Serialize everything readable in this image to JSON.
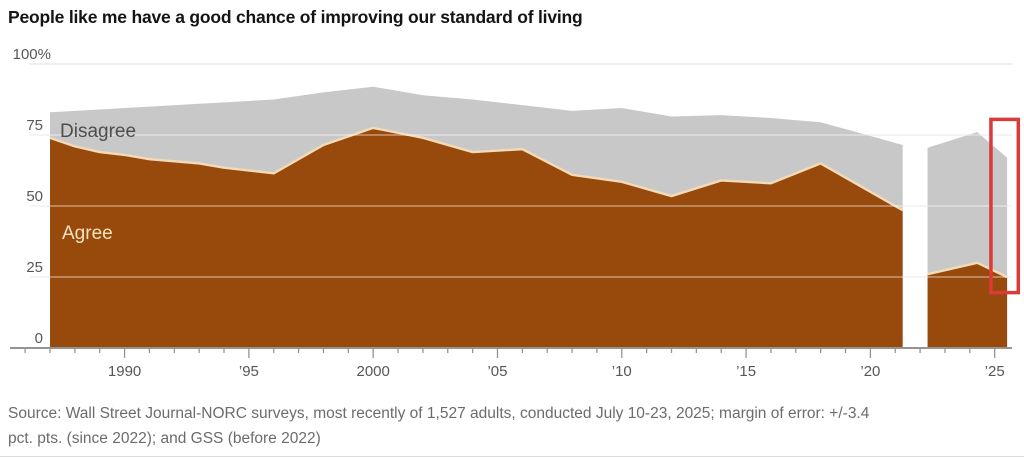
{
  "title": "People like me have a good chance of improving our standard of living",
  "footer": {
    "line1": "Source: Wall Street Journal-NORC surveys, most recently of 1,527 adults, conducted July 10-23, 2025; margin of error: +/-3.4",
    "line2": "pct. pts. (since 2022); and GSS (before 2022)"
  },
  "chart_data": {
    "type": "area",
    "stacked": true,
    "title": "People like me have a good chance of improving our standard of living",
    "unit": "percent",
    "ylim": [
      0,
      100
    ],
    "grid": true,
    "series_labels": {
      "agree": "Agree",
      "disagree": "Disagree"
    },
    "y_ticks": [
      {
        "label": "100%",
        "value": 100
      },
      {
        "label": "75",
        "value": 75
      },
      {
        "label": "50",
        "value": 50
      },
      {
        "label": "25",
        "value": 25
      },
      {
        "label": "0",
        "value": 0
      }
    ],
    "x_ticks": [
      {
        "label": "1990",
        "year": 1990
      },
      {
        "label": "’95",
        "year": 1995
      },
      {
        "label": "2000",
        "year": 2000
      },
      {
        "label": "’05",
        "year": 2005
      },
      {
        "label": "’10",
        "year": 2010
      },
      {
        "label": "’15",
        "year": 2015
      },
      {
        "label": "’20",
        "year": 2020
      },
      {
        "label": "’25",
        "year": 2025
      }
    ],
    "x_minor_ticks": {
      "from": 1986,
      "to": 2025,
      "step": 1
    },
    "segments": [
      {
        "source": "GSS (before 2022)",
        "points": [
          {
            "year": 1987,
            "agree": 74,
            "disagree": 9
          },
          {
            "year": 1988,
            "agree": 71,
            "disagree": 12.5
          },
          {
            "year": 1989,
            "agree": 69,
            "disagree": 15
          },
          {
            "year": 1990,
            "agree": 68,
            "disagree": 16.5
          },
          {
            "year": 1991,
            "agree": 66.5,
            "disagree": 18.5
          },
          {
            "year": 1993,
            "agree": 65,
            "disagree": 21
          },
          {
            "year": 1994,
            "agree": 63.5,
            "disagree": 23
          },
          {
            "year": 1996,
            "agree": 61.5,
            "disagree": 26
          },
          {
            "year": 1998,
            "agree": 71.5,
            "disagree": 18.5
          },
          {
            "year": 2000,
            "agree": 77.5,
            "disagree": 14.5
          },
          {
            "year": 2002,
            "agree": 74,
            "disagree": 15
          },
          {
            "year": 2004,
            "agree": 69,
            "disagree": 18.5
          },
          {
            "year": 2006,
            "agree": 70,
            "disagree": 15.5
          },
          {
            "year": 2008,
            "agree": 61,
            "disagree": 22.5
          },
          {
            "year": 2010,
            "agree": 58.5,
            "disagree": 26
          },
          {
            "year": 2012,
            "agree": 53.5,
            "disagree": 28
          },
          {
            "year": 2014,
            "agree": 59,
            "disagree": 23
          },
          {
            "year": 2016,
            "agree": 58,
            "disagree": 23
          },
          {
            "year": 2018,
            "agree": 65,
            "disagree": 14.5
          },
          {
            "year": 2021.3,
            "agree": 48.5,
            "disagree": 23
          }
        ]
      },
      {
        "source": "Wall Street Journal-NORC (since 2022)",
        "points": [
          {
            "year": 2022.3,
            "agree": 26,
            "disagree": 44.5
          },
          {
            "year": 2024.3,
            "agree": 30,
            "disagree": 46
          },
          {
            "year": 2025.5,
            "agree": 25,
            "disagree": 42
          }
        ]
      }
    ],
    "annotation_box": {
      "year_start": 2024.85,
      "year_end": 2025.95,
      "value_low": 19.5,
      "value_high": 80.5
    },
    "colors": {
      "agree_fill": "#98490c",
      "agree_edge": "#f3dbb7",
      "disagree_fill": "#c8c8c8",
      "grid": "#e3e3e3",
      "grid_overlay": "rgba(255,255,255,0.45)",
      "axis": "#949494",
      "tick_label": "#575757",
      "highlight_box": "#d93a3a",
      "background": "#ffffff"
    },
    "legend_position": "in-plot-labels"
  }
}
